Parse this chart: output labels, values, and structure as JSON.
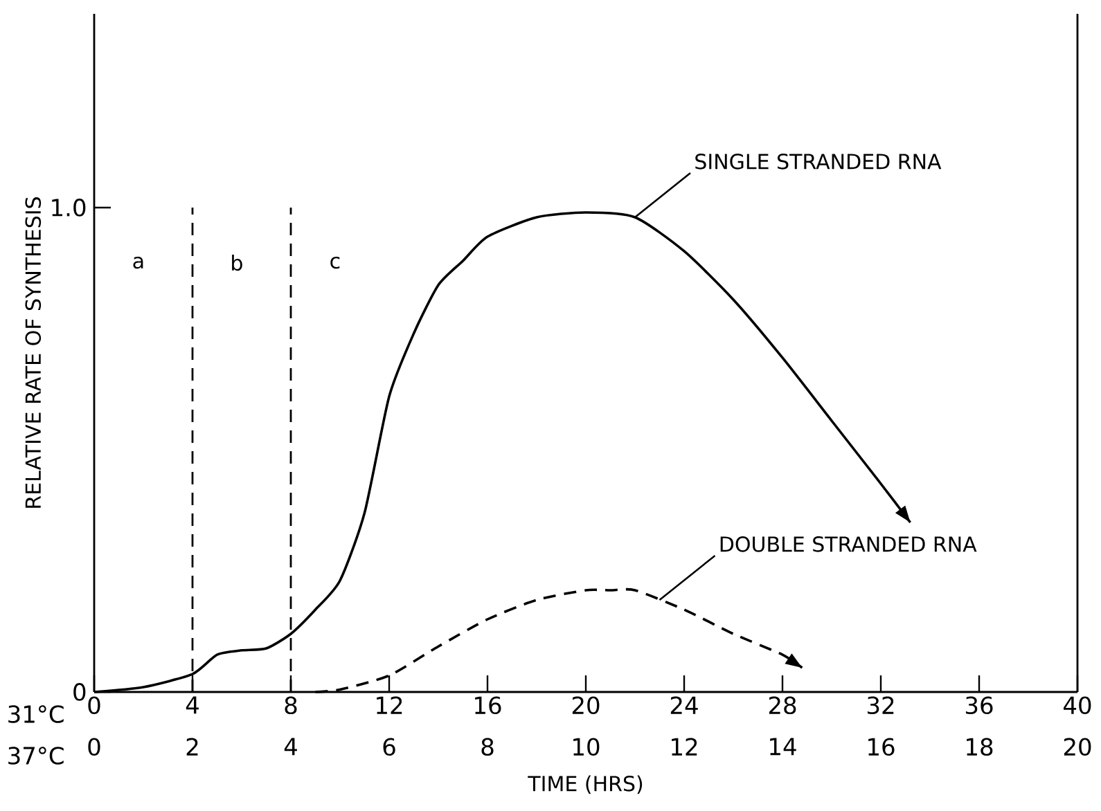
{
  "chart_data": {
    "type": "line",
    "xlabel": "TIME (HRS)",
    "ylabel": "RELATIVE RATE OF SYNTHESIS",
    "xlim": [
      0,
      40
    ],
    "xticks": [
      0,
      4,
      8,
      12,
      16,
      20,
      24,
      28,
      32,
      36,
      40
    ],
    "x2lim": [
      0,
      20
    ],
    "x2ticks": [
      0,
      2,
      4,
      6,
      8,
      10,
      12,
      14,
      16,
      18,
      20
    ],
    "ylim": [
      0,
      1.4
    ],
    "yticks": [
      0,
      {
        "value": 1.0,
        "label": "1.0"
      }
    ],
    "series": [
      {
        "color": "#000000",
        "line_style": "solid",
        "x": [
          0,
          2,
          4,
          5,
          6,
          7,
          8,
          9,
          10,
          11,
          12,
          13,
          14,
          15,
          16,
          18,
          20,
          22,
          24,
          26,
          28,
          30,
          32,
          33.2
        ],
        "values": [
          0,
          0.01,
          0.037,
          0.077,
          0.086,
          0.09,
          0.12,
          0.17,
          0.23,
          0.37,
          0.61,
          0.74,
          0.84,
          0.89,
          0.94,
          0.98,
          0.99,
          0.98,
          0.91,
          0.81,
          0.69,
          0.56,
          0.43,
          0.35
        ]
      },
      {
        "color": "#000000",
        "line_style": "dashed",
        "x": [
          9,
          10,
          12,
          14,
          16,
          18,
          20,
          21,
          22,
          24,
          26,
          28,
          28.8
        ],
        "values": [
          0,
          0.005,
          0.034,
          0.094,
          0.15,
          0.19,
          0.21,
          0.21,
          0.21,
          0.17,
          0.12,
          0.077,
          0.05
        ]
      }
    ],
    "ref_lines": [
      {
        "axis": "x",
        "value": 4,
        "color": "#000000",
        "line_style": "dashed"
      },
      {
        "axis": "x",
        "value": 8,
        "color": "#000000",
        "line_style": "dashed"
      }
    ],
    "annotations": [
      {
        "text": "SINGLE STRANDED RNA",
        "x": 22,
        "y": 0.98
      },
      {
        "text": "DOUBLE STRANDED RNA",
        "x": 23,
        "y": 0.19
      },
      "a",
      "b",
      "c",
      "31°C",
      "37°C"
    ],
    "grid": false
  }
}
